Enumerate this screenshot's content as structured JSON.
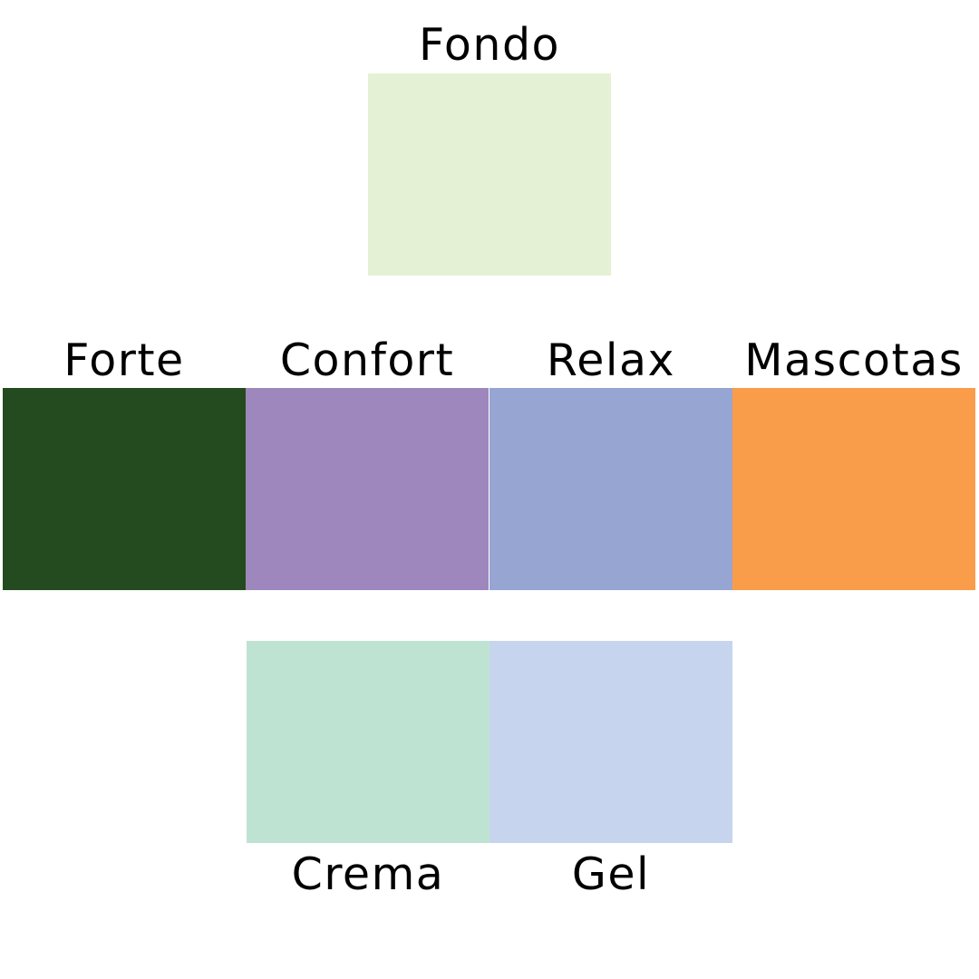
{
  "swatches": {
    "fondo": {
      "label": "Fondo",
      "color": "#E5F1D4"
    },
    "forte": {
      "label": "Forte",
      "color": "#234B1F"
    },
    "confort": {
      "label": "Confort",
      "color": "#9E87BD"
    },
    "relax": {
      "label": "Relax",
      "color": "#97A5D3"
    },
    "mascotas": {
      "label": "Mascotas",
      "color": "#F99D4A"
    },
    "crema": {
      "label": "Crema",
      "color": "#BFE3D2"
    },
    "gel": {
      "label": "Gel",
      "color": "#C7D4EE"
    }
  }
}
